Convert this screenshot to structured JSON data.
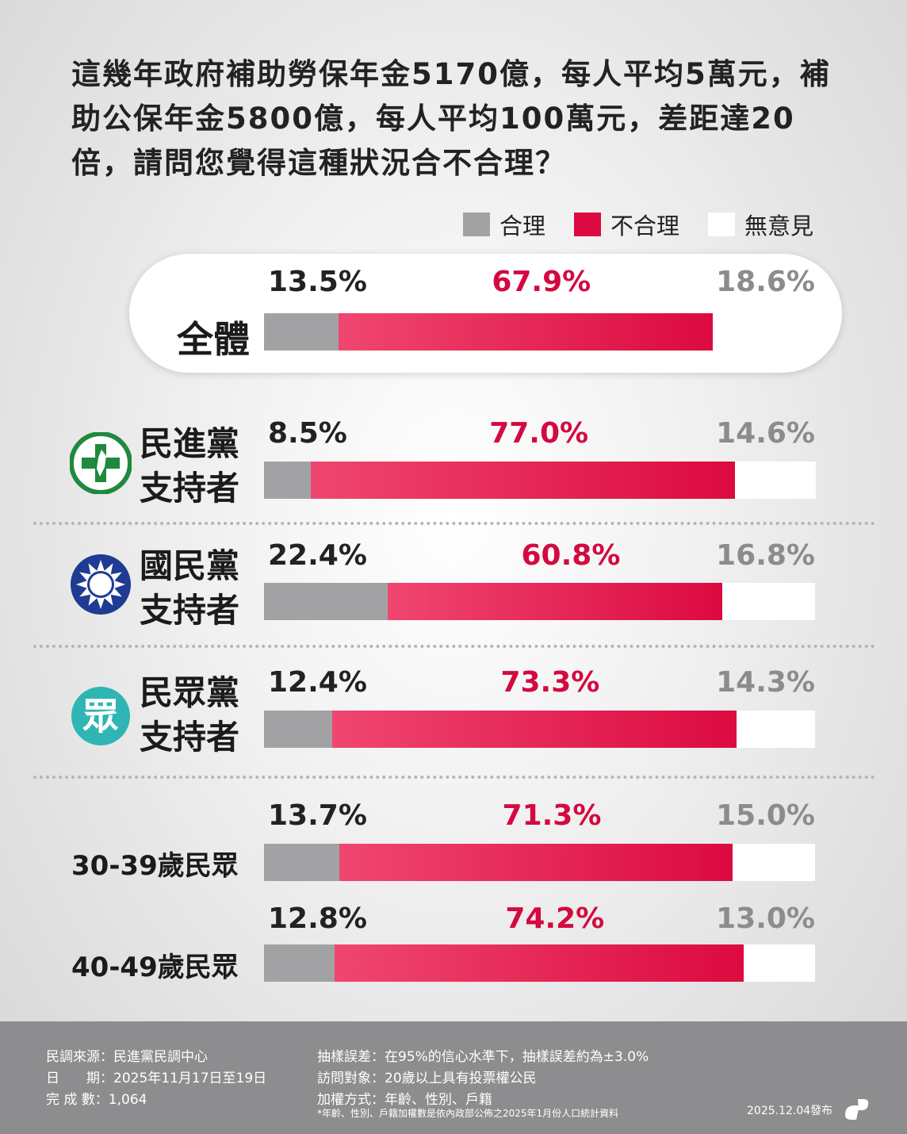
{
  "chart_data": {
    "type": "bar",
    "orientation": "horizontal",
    "stacked": true,
    "title": "這幾年政府補助勞保年金5170億，每人平均5萬元，補助公保年金5800億，每人平均100萬元，差距達20倍，請問您覺得這種狀況合不合理？",
    "categories": [
      "全體",
      "民進黨支持者",
      "國民黨支持者",
      "民眾黨支持者",
      "30-39歲民眾",
      "40-49歲民眾"
    ],
    "xlim": [
      0,
      100
    ],
    "legend": "top-right",
    "series": [
      {
        "name": "合理",
        "color": "#a2a2a4",
        "label_color": "#222222",
        "values": [
          13.5,
          8.5,
          22.4,
          12.4,
          13.7,
          12.8
        ],
        "value_labels": [
          "13.5%",
          "8.5%",
          "22.4%",
          "12.4%",
          "13.7%",
          "12.8%"
        ]
      },
      {
        "name": "不合理",
        "color": "#dc0a40",
        "label_color": "#d4093f",
        "values": [
          67.9,
          77.0,
          60.8,
          73.3,
          71.3,
          74.2
        ],
        "value_labels": [
          "67.9%",
          "77.0%",
          "60.8%",
          "73.3%",
          "71.3%",
          "74.2%"
        ]
      },
      {
        "name": "無意見",
        "color": "#ffffff",
        "label_color": "#8c8c8c",
        "values": [
          18.6,
          14.6,
          16.8,
          14.3,
          15.0,
          13.0
        ],
        "value_labels": [
          "18.6%",
          "14.6%",
          "16.8%",
          "14.3%",
          "15.0%",
          "13.0%"
        ]
      }
    ]
  },
  "tpp_logo_text": "眾",
  "footer": {
    "left": [
      "民調來源：民進黨民調中心",
      "日　　期：2025年11月17日至19日",
      "完 成 數：1,064"
    ],
    "right": [
      "抽樣誤差：在95%的信心水準下，抽樣誤差約為±3.0%",
      "訪問對象：20歲以上具有投票權公民",
      "加權方式：年齡、性別、戶籍"
    ],
    "note": "*年齡、性別、戶籍加權數是依內政部公佈之2025年1月份人口統計資料",
    "date": "2025.12.04發布"
  }
}
